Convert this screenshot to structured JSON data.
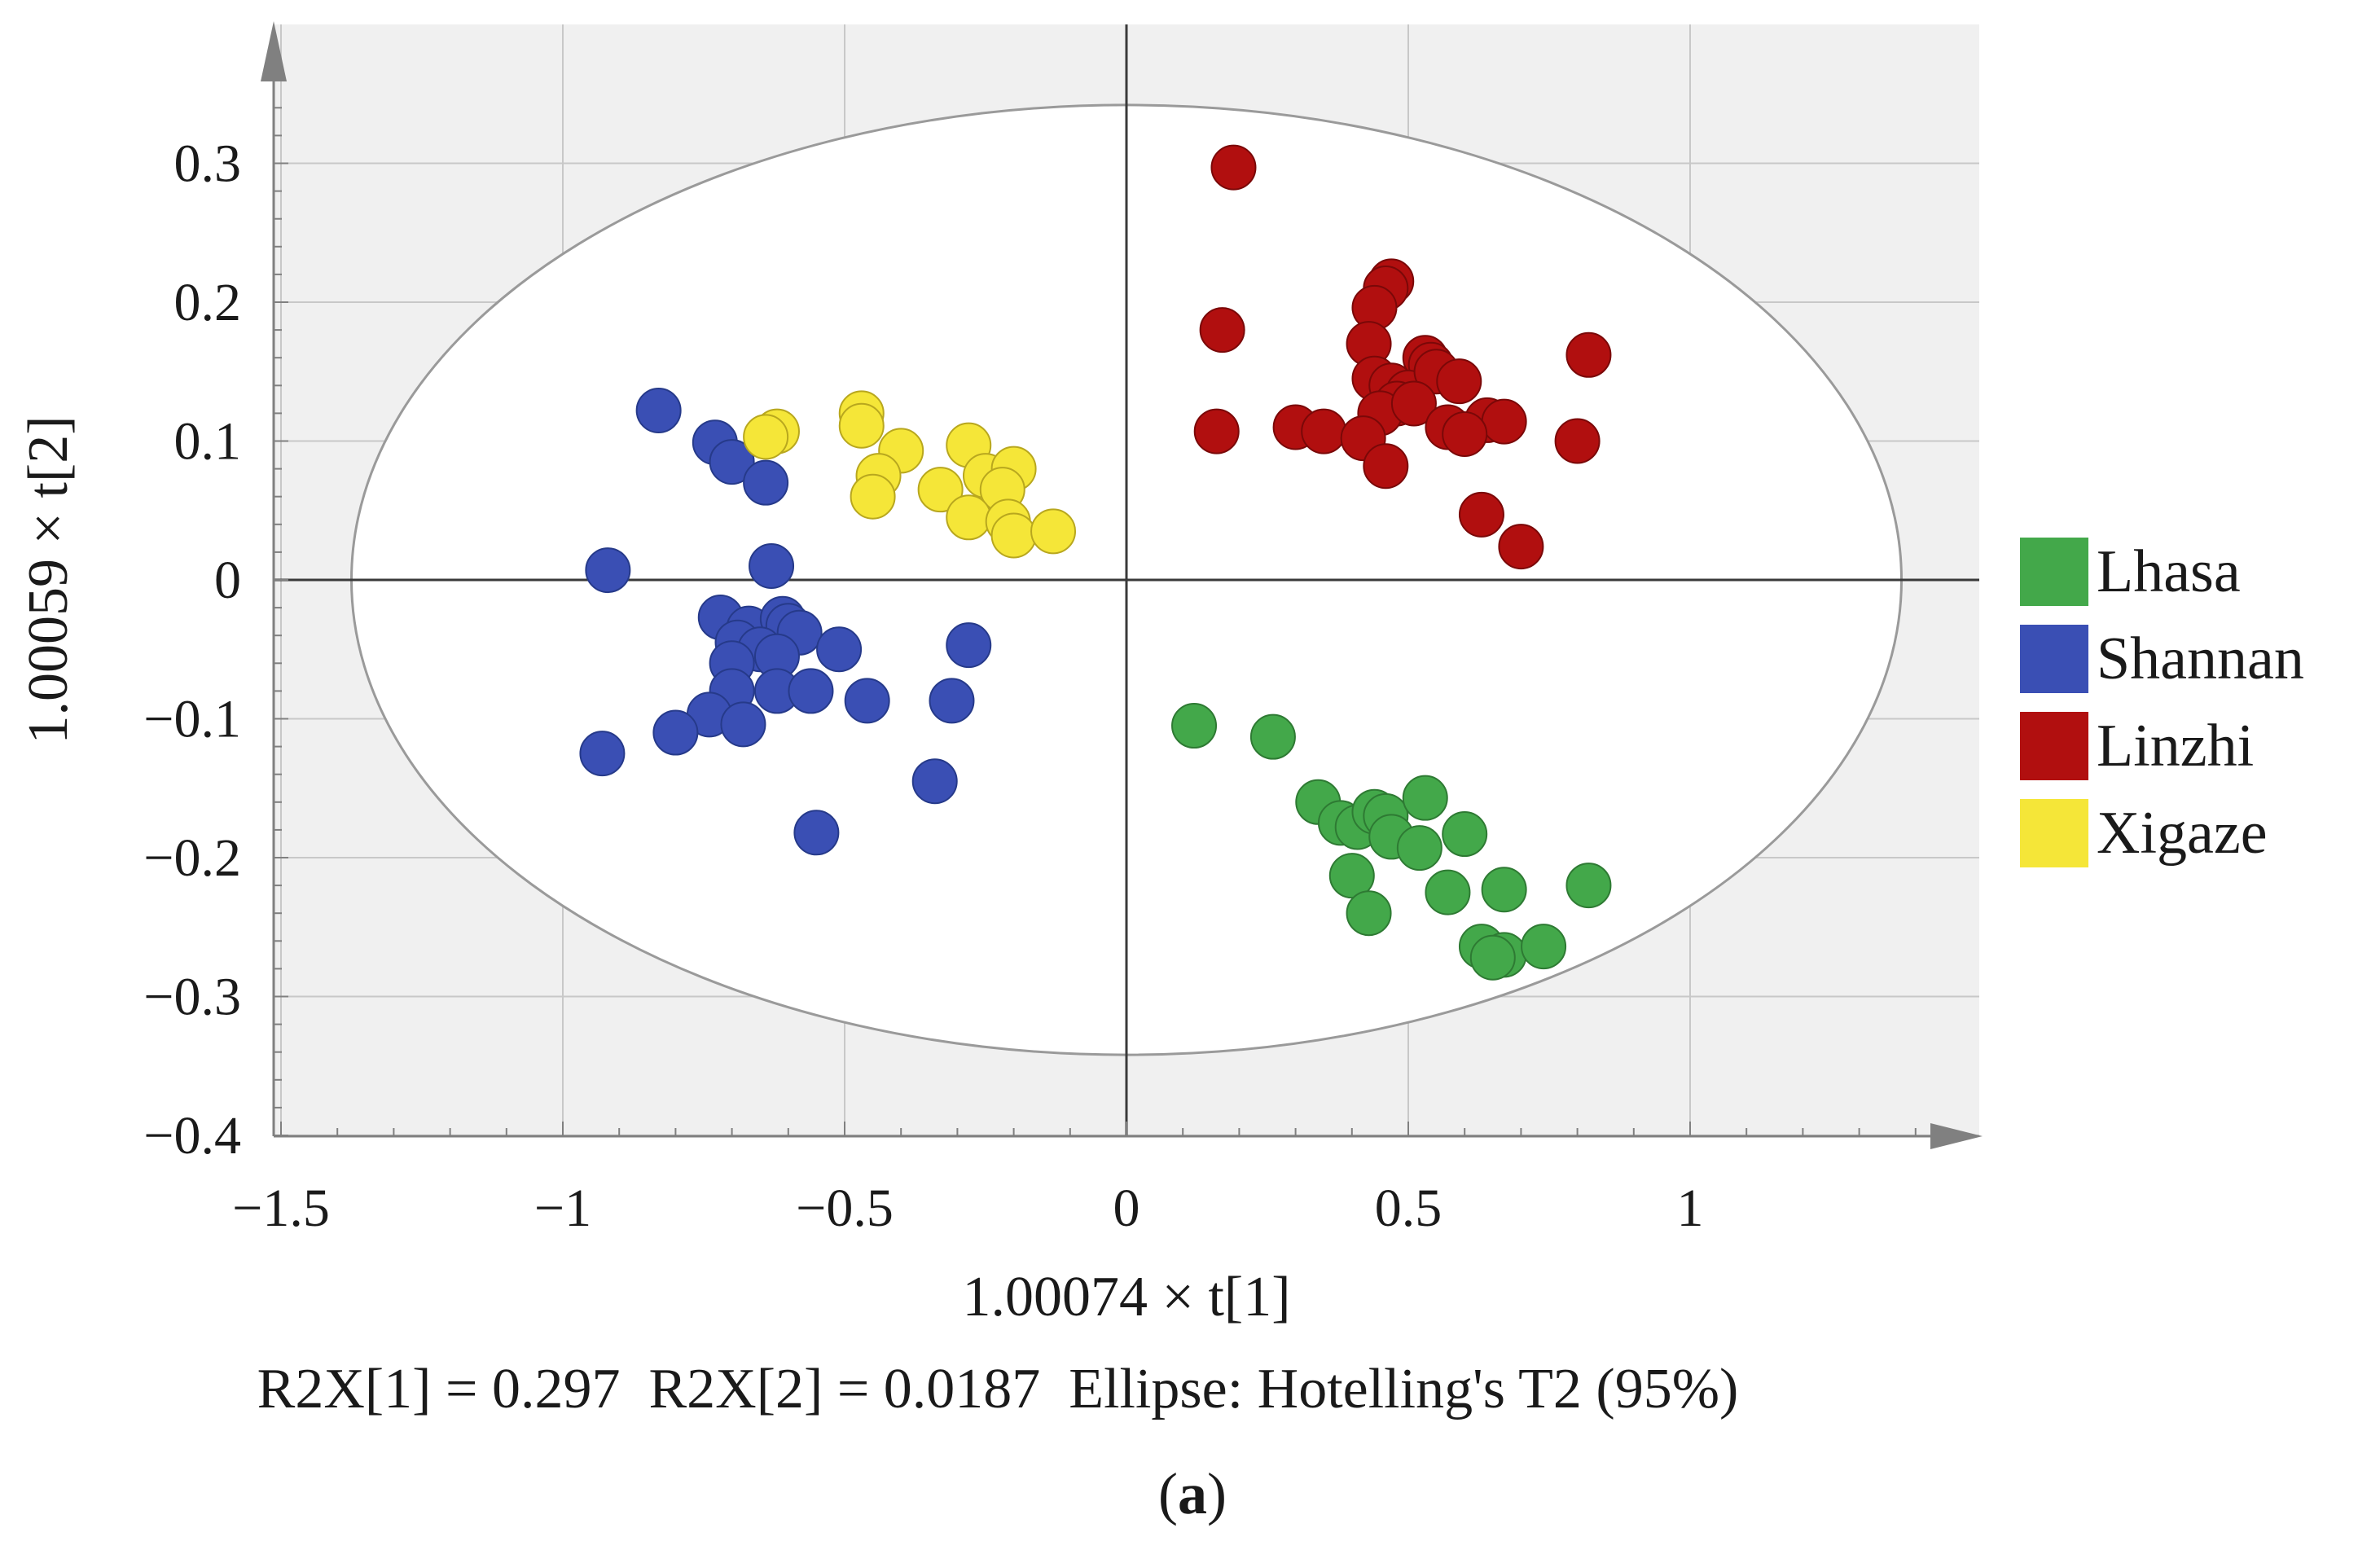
{
  "colors": {
    "plot_background": "#f0f0f0",
    "grid": "#c8c8c8",
    "axis": "#808080",
    "ellipse": "#9a9a9a",
    "zero_lines": "#3a3a3a"
  },
  "chart_data": {
    "type": "scatter",
    "title": "",
    "xlabel": "1.00074 × t[1]",
    "ylabel": "1.00059 × t[2]",
    "xlim": [
      -1.5,
      1.5
    ],
    "ylim": [
      -0.4,
      0.4
    ],
    "x_ticks": [
      -1.5,
      -1,
      -0.5,
      0,
      0.5,
      1
    ],
    "x_tick_labels": [
      "−1.5",
      "−1",
      "−0.5",
      "0",
      "0.5",
      "1"
    ],
    "y_ticks": [
      0.3,
      0.2,
      0.1,
      0,
      -0.1,
      -0.2,
      -0.3,
      -0.4
    ],
    "y_tick_labels": [
      "0.3",
      "0.2",
      "0.1",
      "0",
      "−0.1",
      "−0.2",
      "−0.3",
      "−0.4"
    ],
    "grid": true,
    "legend_position": "right",
    "ellipse": {
      "label": "Hotelling's T2 (95%)",
      "center": [
        0,
        0
      ],
      "semi_axis_x": 1.375,
      "semi_axis_y": 0.342
    },
    "series": [
      {
        "name": "Lhasa",
        "color": "#43a84a",
        "edge": "#2e7a33",
        "points": [
          [
            0.12,
            -0.105
          ],
          [
            0.26,
            -0.113
          ],
          [
            0.34,
            -0.16
          ],
          [
            0.38,
            -0.175
          ],
          [
            0.41,
            -0.178
          ],
          [
            0.44,
            -0.167
          ],
          [
            0.46,
            -0.17
          ],
          [
            0.53,
            -0.157
          ],
          [
            0.47,
            -0.185
          ],
          [
            0.52,
            -0.193
          ],
          [
            0.6,
            -0.183
          ],
          [
            0.4,
            -0.213
          ],
          [
            0.43,
            -0.24
          ],
          [
            0.57,
            -0.225
          ],
          [
            0.67,
            -0.223
          ],
          [
            0.82,
            -0.22
          ],
          [
            0.63,
            -0.264
          ],
          [
            0.67,
            -0.27
          ],
          [
            0.74,
            -0.264
          ],
          [
            0.65,
            -0.272
          ]
        ]
      },
      {
        "name": "Shannan",
        "color": "#3a4fb4",
        "edge": "#263a8a",
        "points": [
          [
            -0.83,
            0.122
          ],
          [
            -0.73,
            0.099
          ],
          [
            -0.7,
            0.085
          ],
          [
            -0.64,
            0.07
          ],
          [
            -0.92,
            0.007
          ],
          [
            -0.63,
            0.01
          ],
          [
            -0.72,
            -0.027
          ],
          [
            -0.67,
            -0.035
          ],
          [
            -0.61,
            -0.028
          ],
          [
            -0.6,
            -0.033
          ],
          [
            -0.58,
            -0.038
          ],
          [
            -0.69,
            -0.045
          ],
          [
            -0.65,
            -0.05
          ],
          [
            -0.62,
            -0.055
          ],
          [
            -0.7,
            -0.06
          ],
          [
            -0.51,
            -0.05
          ],
          [
            -0.28,
            -0.047
          ],
          [
            -0.7,
            -0.08
          ],
          [
            -0.62,
            -0.08
          ],
          [
            -0.56,
            -0.08
          ],
          [
            -0.46,
            -0.087
          ],
          [
            -0.31,
            -0.087
          ],
          [
            -0.74,
            -0.097
          ],
          [
            -0.68,
            -0.104
          ],
          [
            -0.8,
            -0.11
          ],
          [
            -0.93,
            -0.125
          ],
          [
            -0.34,
            -0.145
          ],
          [
            -0.55,
            -0.182
          ]
        ]
      },
      {
        "name": "Linzhi",
        "color": "#b10f0f",
        "edge": "#7a0808",
        "points": [
          [
            0.19,
            0.297
          ],
          [
            0.17,
            0.18
          ],
          [
            0.16,
            0.107
          ],
          [
            0.47,
            0.215
          ],
          [
            0.46,
            0.21
          ],
          [
            0.44,
            0.196
          ],
          [
            0.43,
            0.17
          ],
          [
            0.53,
            0.16
          ],
          [
            0.54,
            0.155
          ],
          [
            0.44,
            0.145
          ],
          [
            0.47,
            0.14
          ],
          [
            0.5,
            0.135
          ],
          [
            0.55,
            0.15
          ],
          [
            0.59,
            0.143
          ],
          [
            0.82,
            0.162
          ],
          [
            0.48,
            0.127
          ],
          [
            0.45,
            0.12
          ],
          [
            0.51,
            0.127
          ],
          [
            0.64,
            0.115
          ],
          [
            0.67,
            0.114
          ],
          [
            0.3,
            0.11
          ],
          [
            0.35,
            0.107
          ],
          [
            0.42,
            0.102
          ],
          [
            0.57,
            0.11
          ],
          [
            0.6,
            0.105
          ],
          [
            0.8,
            0.1
          ],
          [
            0.46,
            0.082
          ],
          [
            0.63,
            0.047
          ],
          [
            0.7,
            0.024
          ]
        ]
      },
      {
        "name": "Xigaze",
        "color": "#f5e638",
        "edge": "#b8a71e",
        "points": [
          [
            -0.62,
            0.107
          ],
          [
            -0.64,
            0.103
          ],
          [
            -0.47,
            0.12
          ],
          [
            -0.47,
            0.111
          ],
          [
            -0.4,
            0.093
          ],
          [
            -0.28,
            0.097
          ],
          [
            -0.44,
            0.075
          ],
          [
            -0.45,
            0.06
          ],
          [
            -0.33,
            0.065
          ],
          [
            -0.25,
            0.075
          ],
          [
            -0.2,
            0.08
          ],
          [
            -0.22,
            0.065
          ],
          [
            -0.28,
            0.045
          ],
          [
            -0.21,
            0.042
          ],
          [
            -0.2,
            0.032
          ],
          [
            -0.13,
            0.035
          ]
        ]
      }
    ]
  },
  "footer": {
    "stats": "R2X[1] = 0.297  R2X[2] = 0.0187  Ellipse: Hotelling's T2 (95%)",
    "panel_label_open": "(",
    "panel_label_letter": "a",
    "panel_label_close": ")"
  }
}
